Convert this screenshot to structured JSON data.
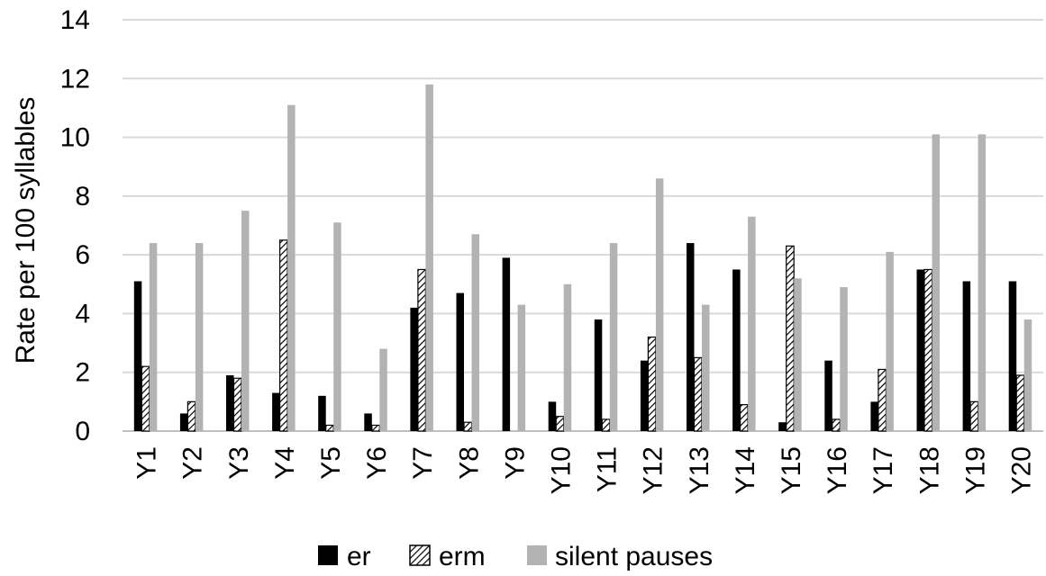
{
  "chart_data": {
    "type": "bar",
    "ylabel": "Rate per 100 syllables",
    "xlabel": "",
    "ylim": [
      0,
      14
    ],
    "y_ticks": [
      "0",
      "2",
      "4",
      "6",
      "8",
      "10",
      "12",
      "14"
    ],
    "grid": "horizontal",
    "legend_position": "bottom",
    "categories": [
      "Y1",
      "Y2",
      "Y3",
      "Y4",
      "Y5",
      "Y6",
      "Y7",
      "Y8",
      "Y9",
      "Y10",
      "Y11",
      "Y12",
      "Y13",
      "Y14",
      "Y15",
      "Y16",
      "Y17",
      "Y18",
      "Y19",
      "Y20"
    ],
    "series": [
      {
        "name": "er",
        "color": "#000000",
        "pattern": "solid",
        "values": [
          5.1,
          0.6,
          1.9,
          1.3,
          1.2,
          0.6,
          4.2,
          4.7,
          5.9,
          1.0,
          3.8,
          2.4,
          6.4,
          5.5,
          0.3,
          2.4,
          1.0,
          5.5,
          5.1,
          5.1
        ]
      },
      {
        "name": "erm",
        "color": "#000000",
        "pattern": "hatched",
        "values": [
          2.2,
          1.0,
          1.8,
          6.5,
          0.2,
          0.2,
          5.5,
          0.3,
          0.0,
          0.5,
          0.4,
          3.2,
          2.5,
          0.9,
          6.3,
          0.4,
          2.1,
          5.5,
          1.0,
          1.9
        ]
      },
      {
        "name": "silent pauses",
        "color": "#b3b3b3",
        "pattern": "solid",
        "values": [
          6.4,
          6.4,
          7.5,
          11.1,
          7.1,
          2.8,
          11.8,
          6.7,
          4.3,
          5.0,
          6.4,
          8.6,
          4.3,
          7.3,
          5.2,
          4.9,
          6.1,
          10.1,
          10.1,
          3.8
        ]
      }
    ]
  }
}
